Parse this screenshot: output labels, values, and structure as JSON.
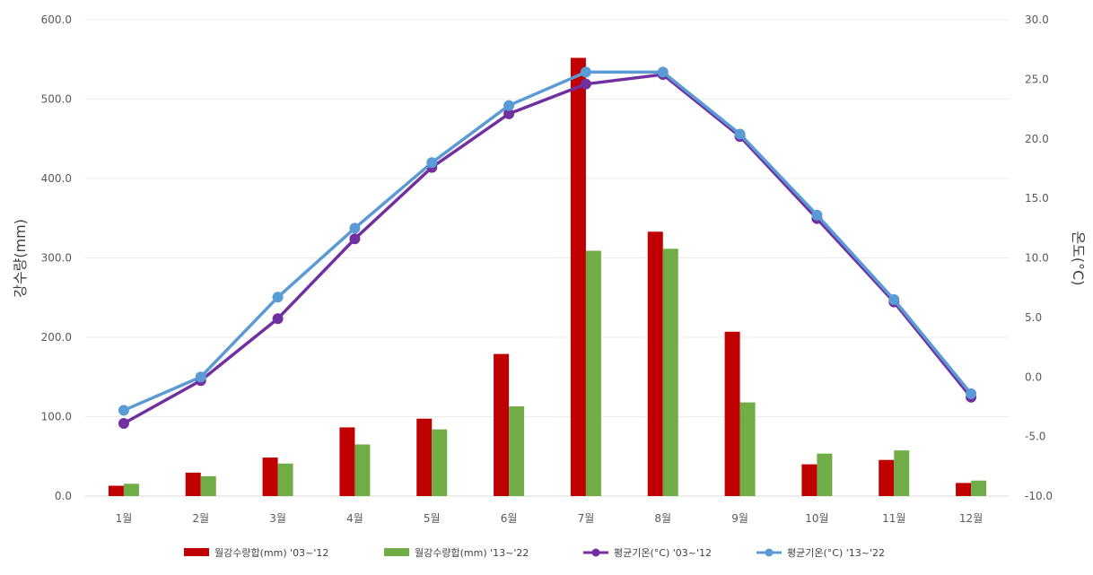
{
  "chart_data": {
    "type": "bar",
    "categories": [
      "1월",
      "2월",
      "3월",
      "4월",
      "5월",
      "6월",
      "7월",
      "8월",
      "9월",
      "10월",
      "11월",
      "12월"
    ],
    "series": [
      {
        "name": "월강수량합(mm) '03~'12",
        "type": "bar",
        "axis": "left",
        "color": "#c00000",
        "values": [
          13.0,
          29.5,
          48.5,
          86.5,
          97.5,
          179.0,
          552.0,
          333.0,
          207.0,
          40.0,
          45.5,
          16.5
        ]
      },
      {
        "name": "월강수량합(mm) '13~'22",
        "type": "bar",
        "axis": "left",
        "color": "#70ad47",
        "values": [
          15.5,
          25.0,
          41.0,
          65.0,
          84.0,
          113.0,
          309.0,
          311.5,
          118.0,
          53.5,
          57.5,
          19.5
        ]
      },
      {
        "name": "평균기온(°C) '03~'12",
        "type": "line",
        "axis": "right",
        "color": "#7030a0",
        "values": [
          -3.9,
          -0.3,
          4.9,
          11.6,
          17.6,
          22.1,
          24.6,
          25.4,
          20.2,
          13.3,
          6.3,
          -1.7
        ]
      },
      {
        "name": "평균기온(°C) '13~'22",
        "type": "line",
        "axis": "right",
        "color": "#5b9bd5",
        "values": [
          -2.8,
          0.0,
          6.7,
          12.5,
          18.0,
          22.8,
          25.6,
          25.6,
          20.4,
          13.6,
          6.5,
          -1.4
        ]
      }
    ],
    "y_left": {
      "label": "강수량(mm)",
      "ylim": [
        0,
        600
      ],
      "ticks": [
        "0.0",
        "100.0",
        "200.0",
        "300.0",
        "400.0",
        "500.0",
        "600.0"
      ]
    },
    "y_right": {
      "label": "온도(°C)",
      "ylim": [
        -10,
        30
      ],
      "ticks": [
        "-10.0",
        "-5.0",
        "0.0",
        "5.0",
        "10.0",
        "15.0",
        "20.0",
        "25.0",
        "30.0"
      ]
    },
    "grid": true,
    "legend_position": "bottom"
  }
}
